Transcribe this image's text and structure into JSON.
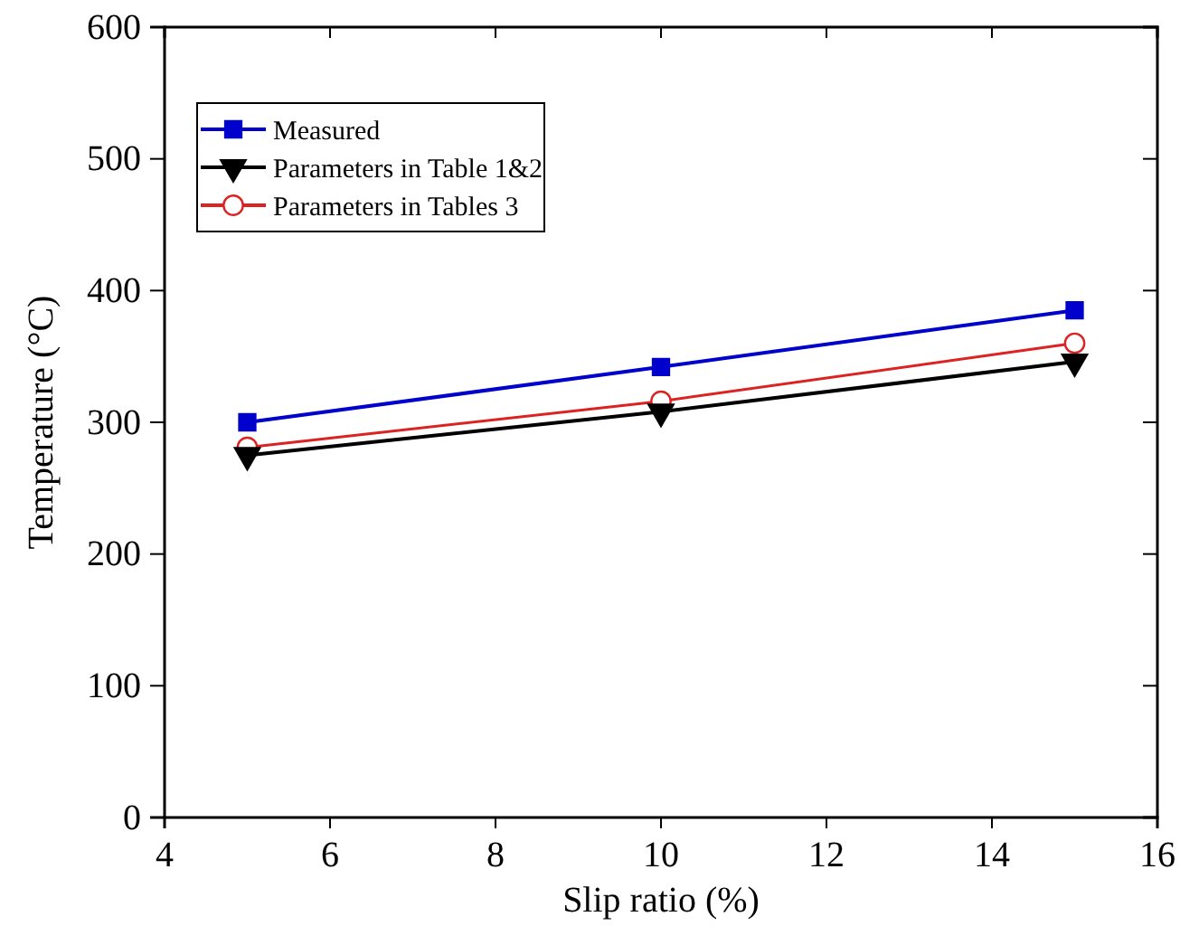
{
  "chart_data": {
    "type": "line",
    "xlabel": "Slip ratio (%)",
    "ylabel": "Temperature (°C)",
    "x": [
      5,
      10,
      15
    ],
    "xlim": [
      4,
      16
    ],
    "xticks": [
      4,
      6,
      8,
      10,
      12,
      14,
      16
    ],
    "ylim": [
      0,
      600
    ],
    "yticks": [
      0,
      100,
      200,
      300,
      400,
      500,
      600
    ],
    "grid": false,
    "legend": "top left",
    "series": [
      {
        "name": "Measured",
        "color": "#0000cc",
        "marker": "square",
        "values": [
          300,
          342,
          385
        ]
      },
      {
        "name": "Parameters in Table 1&2",
        "color": "#000000",
        "marker": "triangle",
        "values": [
          275,
          308,
          346
        ]
      },
      {
        "name": "Parameters in Tables 3",
        "color": "#dd2222",
        "marker": "circle",
        "values": [
          281,
          316,
          360
        ]
      }
    ]
  }
}
